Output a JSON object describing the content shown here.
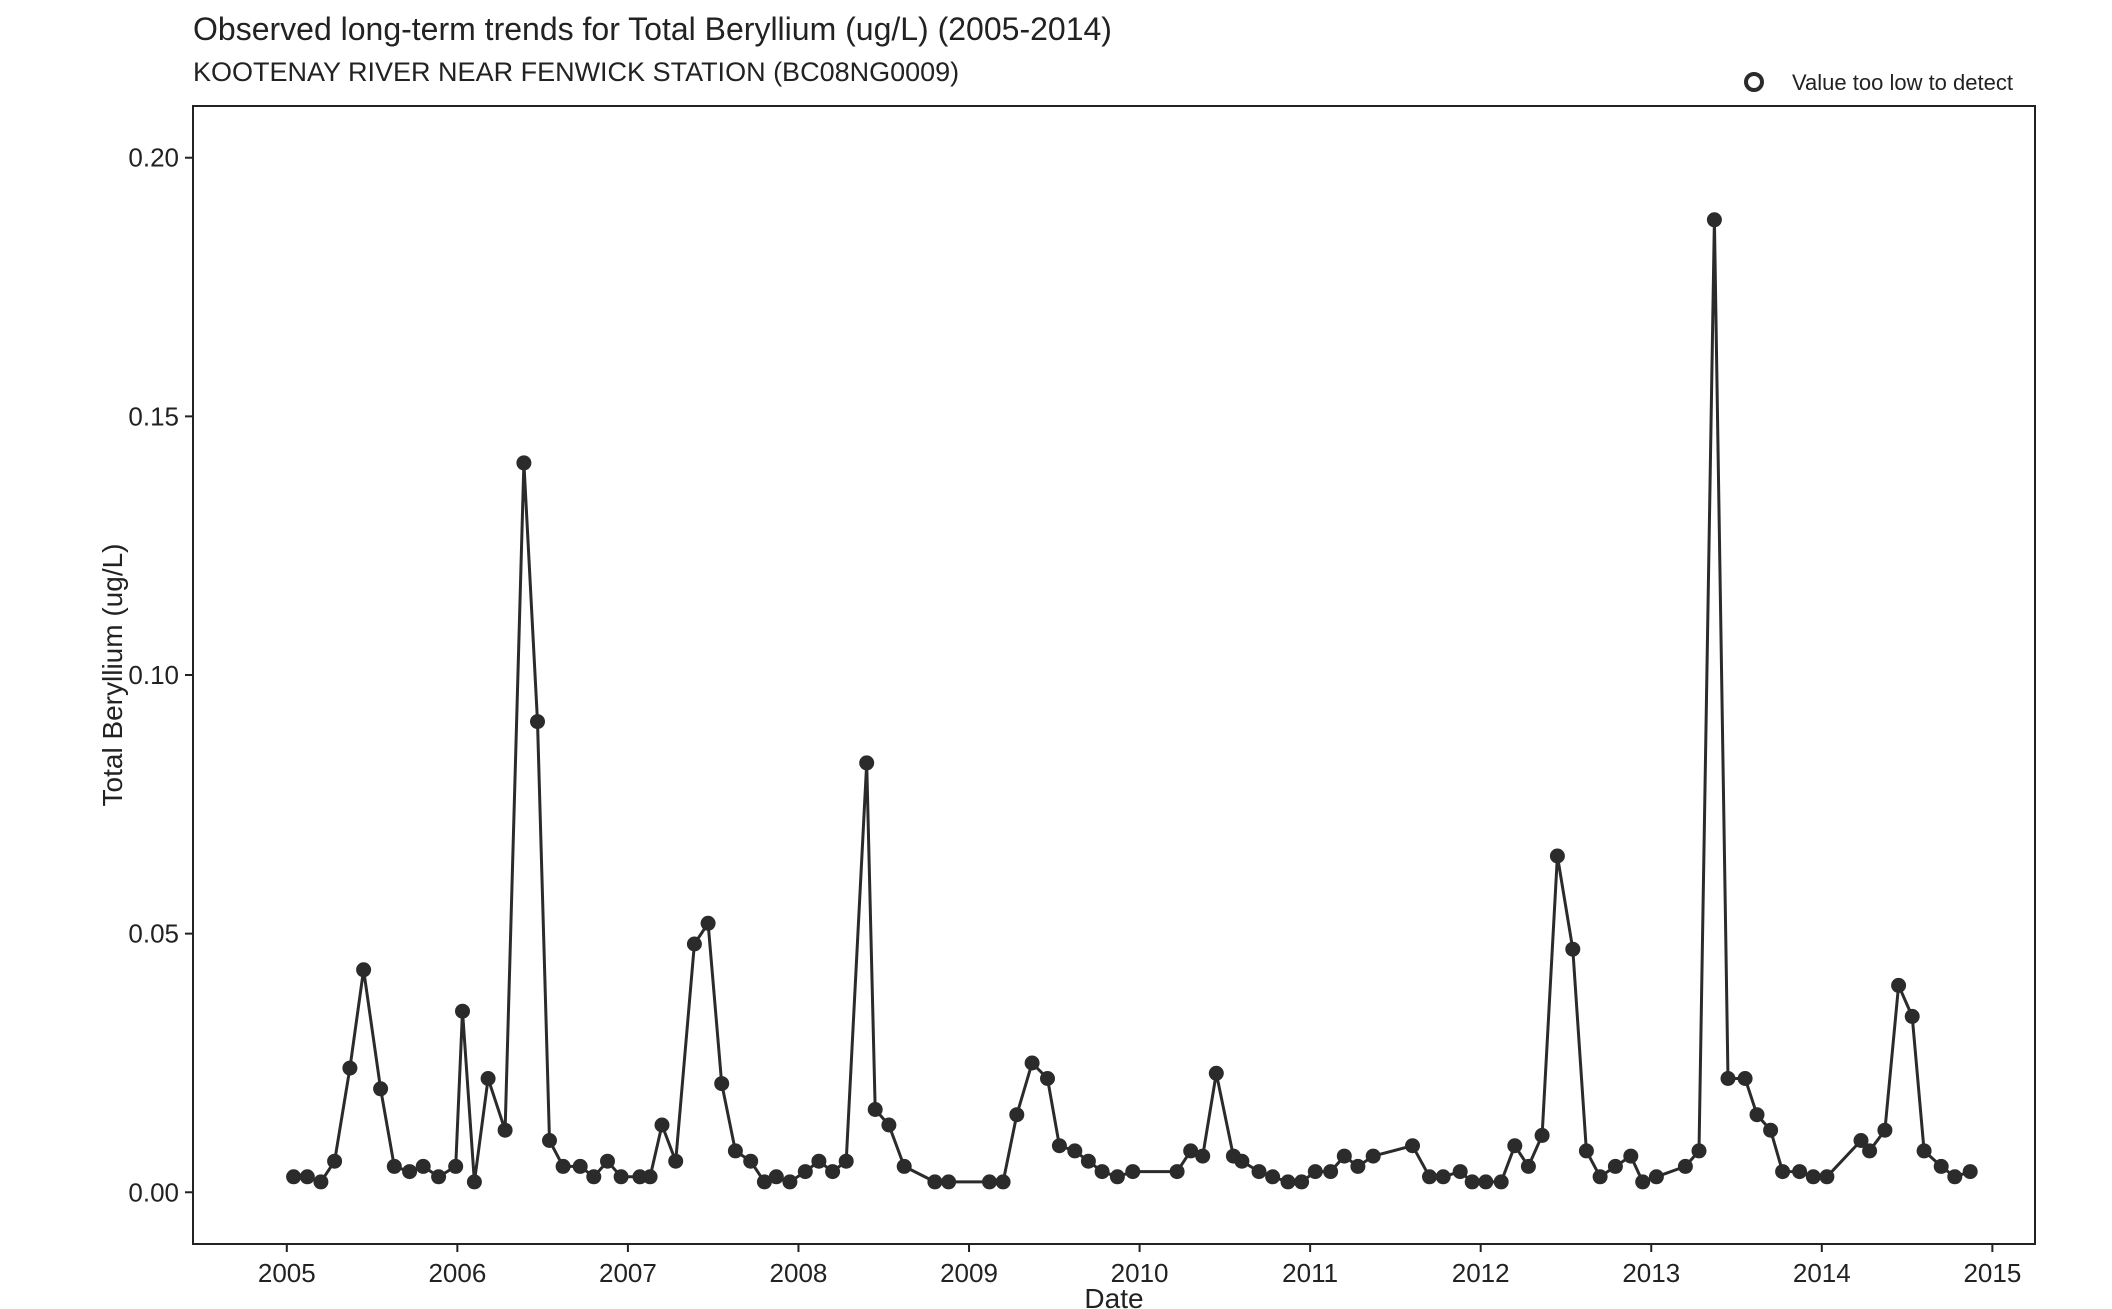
{
  "chart_data": {
    "type": "line",
    "title": "Observed long-term trends for Total Beryllium (ug/L) (2005-2014)",
    "subtitle": "KOOTENAY RIVER NEAR FENWICK STATION (BC08NG0009)",
    "xlabel": "Date",
    "ylabel": "Total Beryllium (ug/L)",
    "xlim": [
      2004.45,
      2015.25
    ],
    "ylim": [
      -0.01,
      0.21
    ],
    "x_ticks": [
      2005,
      2006,
      2007,
      2008,
      2009,
      2010,
      2011,
      2012,
      2013,
      2014,
      2015
    ],
    "x_tick_labels": [
      "2005",
      "2006",
      "2007",
      "2008",
      "2009",
      "2010",
      "2011",
      "2012",
      "2013",
      "2014",
      "2015"
    ],
    "y_ticks": [
      0,
      0.05,
      0.1,
      0.15,
      0.2
    ],
    "y_tick_labels": [
      "0.00",
      "0.05",
      "0.10",
      "0.15",
      "0.20"
    ],
    "grid": false,
    "legend": {
      "position": "top-right",
      "entries": [
        {
          "label": "Value too low to detect",
          "marker": "open-circle"
        }
      ]
    },
    "colors": {
      "line": "#2b2b2b",
      "point": "#2b2b2b"
    },
    "series": [
      {
        "x": [
          2005.04,
          2005.12,
          2005.2,
          2005.28,
          2005.37,
          2005.45,
          2005.55,
          2005.63,
          2005.72,
          2005.8,
          2005.89,
          2005.99,
          2006.03,
          2006.1,
          2006.18,
          2006.28,
          2006.39,
          2006.47,
          2006.54,
          2006.62,
          2006.72,
          2006.8,
          2006.88,
          2006.96,
          2007.07,
          2007.13,
          2007.2,
          2007.28,
          2007.39,
          2007.47,
          2007.55,
          2007.63,
          2007.72,
          2007.8,
          2007.87,
          2007.95,
          2008.04,
          2008.12,
          2008.2,
          2008.28,
          2008.4,
          2008.45,
          2008.53,
          2008.62,
          2008.8,
          2008.88,
          2009.12,
          2009.2,
          2009.28,
          2009.37,
          2009.46,
          2009.53,
          2009.62,
          2009.7,
          2009.78,
          2009.87,
          2009.96,
          2010.22,
          2010.3,
          2010.37,
          2010.45,
          2010.55,
          2010.6,
          2010.7,
          2010.78,
          2010.87,
          2010.95,
          2011.03,
          2011.12,
          2011.2,
          2011.28,
          2011.37,
          2011.6,
          2011.7,
          2011.78,
          2011.88,
          2011.95,
          2012.03,
          2012.12,
          2012.2,
          2012.28,
          2012.36,
          2012.45,
          2012.54,
          2012.62,
          2012.7,
          2012.79,
          2012.88,
          2012.95,
          2013.03,
          2013.2,
          2013.28,
          2013.37,
          2013.45,
          2013.55,
          2013.62,
          2013.7,
          2013.77,
          2013.87,
          2013.95,
          2014.03,
          2014.23,
          2014.28,
          2014.37,
          2014.45,
          2014.53,
          2014.6,
          2014.7,
          2014.78,
          2014.87
        ],
        "y": [
          0.003,
          0.003,
          0.002,
          0.006,
          0.024,
          0.043,
          0.02,
          0.005,
          0.004,
          0.005,
          0.003,
          0.005,
          0.035,
          0.002,
          0.022,
          0.012,
          0.141,
          0.091,
          0.01,
          0.005,
          0.005,
          0.003,
          0.006,
          0.003,
          0.003,
          0.003,
          0.013,
          0.006,
          0.048,
          0.052,
          0.021,
          0.008,
          0.006,
          0.002,
          0.003,
          0.002,
          0.004,
          0.006,
          0.004,
          0.006,
          0.083,
          0.016,
          0.013,
          0.005,
          0.002,
          0.002,
          0.002,
          0.002,
          0.015,
          0.025,
          0.022,
          0.009,
          0.008,
          0.006,
          0.004,
          0.003,
          0.004,
          0.004,
          0.008,
          0.007,
          0.023,
          0.007,
          0.006,
          0.004,
          0.003,
          0.002,
          0.002,
          0.004,
          0.004,
          0.007,
          0.005,
          0.007,
          0.009,
          0.003,
          0.003,
          0.004,
          0.002,
          0.002,
          0.002,
          0.009,
          0.005,
          0.011,
          0.065,
          0.047,
          0.008,
          0.003,
          0.005,
          0.007,
          0.002,
          0.003,
          0.005,
          0.008,
          0.188,
          0.022,
          0.022,
          0.015,
          0.012,
          0.004,
          0.004,
          0.003,
          0.003,
          0.01,
          0.008,
          0.012,
          0.04,
          0.034,
          0.008,
          0.005,
          0.003,
          0.004
        ]
      }
    ]
  }
}
